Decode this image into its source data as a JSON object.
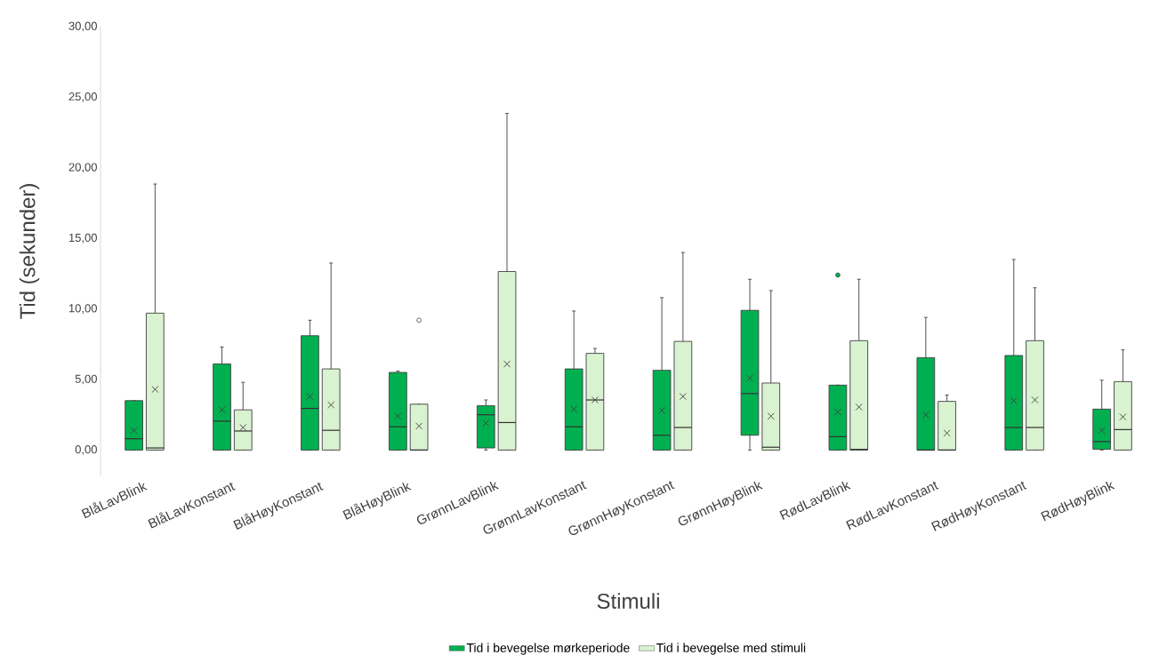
{
  "chart_data": {
    "type": "box",
    "xlabel": "Stimuli",
    "ylabel": "Tid (sekunder)",
    "categories": [
      "BlåLavBlink",
      "BlåLavKonstant",
      "BlåHøyKonstant",
      "BlåHøyBlink",
      "GrønnLavBlink",
      "GrønnLavKonstant",
      "GrønnHøyKonstant",
      "GrønnHøyBlink",
      "RødLavBlink",
      "RødLavKonstant",
      "RødHøyKonstant",
      "RødHøyBlink"
    ],
    "ylim": [
      -1.8,
      30
    ],
    "yticks": [
      {
        "value": 0,
        "label": "0,00"
      },
      {
        "value": 5,
        "label": "5,00"
      },
      {
        "value": 10,
        "label": "10,00"
      },
      {
        "value": 15,
        "label": "15,00"
      },
      {
        "value": 20,
        "label": "20,00"
      },
      {
        "value": 25,
        "label": "25,00"
      },
      {
        "value": 30,
        "label": "30,00"
      }
    ],
    "legend": "bottom",
    "series": [
      {
        "name": "Tid i bevegelse mørkeperiode",
        "color": "#00b050",
        "boxes": [
          {
            "low": 0,
            "q1": 0,
            "median": 0.8,
            "q3": 3.5,
            "high": 3.5,
            "mean": 1.4
          },
          {
            "low": 0,
            "q1": 0,
            "median": 2.05,
            "q3": 6.1,
            "high": 7.3,
            "mean": 2.85
          },
          {
            "low": 0,
            "q1": 0,
            "median": 2.95,
            "q3": 8.1,
            "high": 9.2,
            "mean": 3.8
          },
          {
            "low": 0,
            "q1": 0,
            "median": 1.65,
            "q3": 5.5,
            "high": 5.6,
            "mean": 2.4
          },
          {
            "low": 0,
            "q1": 0.15,
            "median": 2.5,
            "q3": 3.15,
            "high": 3.55,
            "mean": 1.9
          },
          {
            "low": 0,
            "q1": 0,
            "median": 1.65,
            "q3": 5.75,
            "high": 9.85,
            "mean": 2.9
          },
          {
            "low": 0,
            "q1": 0,
            "median": 1.05,
            "q3": 5.65,
            "high": 10.8,
            "mean": 2.8
          },
          {
            "low": 0,
            "q1": 1.05,
            "median": 4.0,
            "q3": 9.9,
            "high": 12.1,
            "mean": 5.1
          },
          {
            "low": 0,
            "q1": 0,
            "median": 0.95,
            "q3": 4.6,
            "high": 4.6,
            "mean": 2.7,
            "outliers": [
              12.4
            ]
          },
          {
            "low": 0,
            "q1": 0,
            "median": 0,
            "q3": 6.55,
            "high": 9.4,
            "mean": 2.5
          },
          {
            "low": 0,
            "q1": 0,
            "median": 1.6,
            "q3": 6.7,
            "high": 13.5,
            "mean": 3.5
          },
          {
            "low": 0,
            "q1": 0.05,
            "median": 0.6,
            "q3": 2.9,
            "high": 4.95,
            "mean": 1.4
          }
        ]
      },
      {
        "name": "Tid i bevegelse med stimuli",
        "color": "#d9f2d0",
        "boxes": [
          {
            "low": 0,
            "q1": 0,
            "median": 0.15,
            "q3": 9.7,
            "high": 18.85,
            "mean": 4.3
          },
          {
            "low": 0,
            "q1": 0,
            "median": 1.35,
            "q3": 2.85,
            "high": 4.8,
            "mean": 1.6
          },
          {
            "low": 0,
            "q1": 0,
            "median": 1.4,
            "q3": 5.75,
            "high": 13.25,
            "mean": 3.2
          },
          {
            "low": 0,
            "q1": 0,
            "median": 0,
            "q3": 3.25,
            "high": 3.25,
            "mean": 1.7,
            "outliers": [
              9.2
            ]
          },
          {
            "low": 0,
            "q1": 0,
            "median": 1.95,
            "q3": 12.65,
            "high": 23.85,
            "mean": 6.1
          },
          {
            "low": 0,
            "q1": 0,
            "median": 3.55,
            "q3": 6.85,
            "high": 7.2,
            "mean": 3.55
          },
          {
            "low": 0,
            "q1": 0,
            "median": 1.6,
            "q3": 7.7,
            "high": 14.0,
            "mean": 3.8
          },
          {
            "low": 0,
            "q1": 0,
            "median": 0.2,
            "q3": 4.75,
            "high": 11.3,
            "mean": 2.4
          },
          {
            "low": 0,
            "q1": 0,
            "median": 0.05,
            "q3": 7.75,
            "high": 12.1,
            "mean": 3.05
          },
          {
            "low": 0,
            "q1": 0,
            "median": 0,
            "q3": 3.45,
            "high": 3.9,
            "mean": 1.2
          },
          {
            "low": 0,
            "q1": 0,
            "median": 1.6,
            "q3": 7.75,
            "high": 11.5,
            "mean": 3.55
          },
          {
            "low": 0,
            "q1": 0,
            "median": 1.45,
            "q3": 4.85,
            "high": 7.1,
            "mean": 2.35
          }
        ]
      }
    ]
  }
}
